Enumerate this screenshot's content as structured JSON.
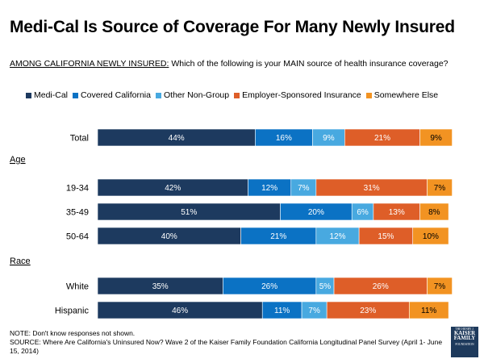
{
  "chart_data": {
    "type": "bar",
    "orientation": "horizontal",
    "stacked": true,
    "title": "Medi-Cal Is Source of Coverage For Many Newly Insured",
    "question_lead": "AMONG CALIFORNIA NEWLY INSURED:",
    "question_text": " Which of the following is your MAIN source of health insurance coverage?",
    "series": [
      {
        "name": "Medi-Cal",
        "color": "#1d3a5f"
      },
      {
        "name": "Covered California",
        "color": "#0b72c4"
      },
      {
        "name": "Other Non-Group",
        "color": "#48a9e0"
      },
      {
        "name": "Employer-Sponsored Insurance",
        "color": "#de5e28"
      },
      {
        "name": "Somewhere Else",
        "color": "#f29322"
      }
    ],
    "rows": [
      {
        "label": "Total",
        "values": [
          44,
          16,
          9,
          21,
          9
        ]
      },
      {
        "section": "Age"
      },
      {
        "label": "19-34",
        "values": [
          42,
          12,
          7,
          31,
          7
        ]
      },
      {
        "label": "35-49",
        "values": [
          51,
          20,
          6,
          13,
          8
        ]
      },
      {
        "label": "50-64",
        "values": [
          40,
          21,
          12,
          15,
          10
        ]
      },
      {
        "section": "Race"
      },
      {
        "label": "White",
        "values": [
          35,
          26,
          5,
          26,
          7
        ]
      },
      {
        "label": "Hispanic",
        "values": [
          46,
          11,
          7,
          23,
          11
        ]
      }
    ],
    "value_suffix": "%",
    "xlim": [
      0,
      100
    ]
  },
  "footer": {
    "note": "NOTE: Don't know responses not shown.",
    "source": "SOURCE: Where Are California's Uninsured Now? Wave 2 of the Kaiser Family Foundation California Longitudinal Panel Survey (April 1- June 15, 2014)"
  },
  "logo": {
    "line1": "THE HENRY J.",
    "line2": "KAISER",
    "line3": "FAMILY",
    "line4": "FOUNDATION"
  }
}
